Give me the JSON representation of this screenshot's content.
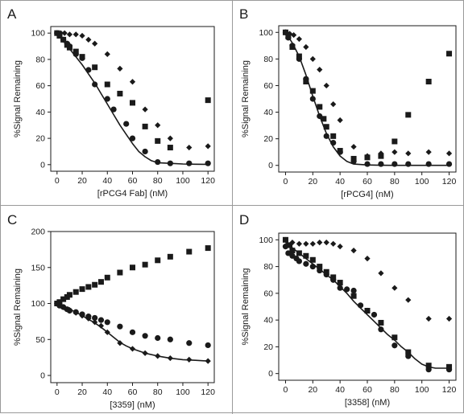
{
  "chart_data": [
    {
      "panel_label": "A",
      "type": "scatter",
      "xlabel": "[rPCG4 Fab] (nM)",
      "ylabel": "%Signal Remaining",
      "xlim": [
        -5,
        125
      ],
      "ylim": [
        -5,
        105
      ],
      "xticks": [
        0,
        20,
        40,
        60,
        80,
        100,
        120
      ],
      "yticks": [
        0,
        20,
        40,
        60,
        80,
        100
      ],
      "fit_line": {
        "x": [
          0,
          5,
          10,
          15,
          20,
          25,
          30,
          35,
          40,
          45,
          50,
          55,
          60,
          65,
          70,
          75,
          80,
          90,
          100,
          110,
          120
        ],
        "y": [
          100,
          94,
          88,
          82,
          76,
          69,
          62,
          54,
          46,
          38,
          30,
          23,
          16,
          10,
          6,
          3,
          1.5,
          1,
          0.5,
          0.3,
          0.2
        ]
      },
      "series": [
        {
          "marker": "diamond",
          "x": [
            0,
            3,
            6,
            10,
            15,
            20,
            25,
            30,
            40,
            50,
            60,
            70,
            80,
            90,
            105,
            120
          ],
          "y": [
            100,
            100,
            100,
            99,
            99,
            98,
            95,
            92,
            84,
            73,
            63,
            42,
            30,
            20,
            13,
            14
          ]
        },
        {
          "marker": "square",
          "x": [
            0,
            2,
            5,
            8,
            10,
            15,
            20,
            30,
            40,
            50,
            60,
            70,
            80,
            90,
            120
          ],
          "y": [
            100,
            98,
            95,
            91,
            89,
            86,
            82,
            74,
            61,
            54,
            47,
            29,
            18,
            13,
            49
          ]
        },
        {
          "marker": "circle",
          "x": [
            0,
            2,
            5,
            8,
            10,
            15,
            20,
            25,
            30,
            40,
            45,
            55,
            60,
            70,
            80,
            90,
            105,
            120
          ],
          "y": [
            100,
            98,
            95,
            92,
            90,
            84,
            81,
            72,
            61,
            50,
            42,
            31,
            20,
            10,
            2,
            1,
            1,
            1
          ]
        }
      ]
    },
    {
      "panel_label": "B",
      "type": "scatter",
      "xlabel": "[rPCG4] (nM)",
      "ylabel": "%Signal Remaining",
      "xlim": [
        -5,
        125
      ],
      "ylim": [
        -5,
        105
      ],
      "xticks": [
        0,
        20,
        40,
        60,
        80,
        100,
        120
      ],
      "yticks": [
        0,
        20,
        40,
        60,
        80,
        100
      ],
      "fit_line": {
        "x": [
          0,
          5,
          10,
          15,
          20,
          25,
          30,
          35,
          40,
          45,
          50,
          60,
          70,
          80,
          90,
          100,
          110,
          120
        ],
        "y": [
          100,
          92,
          82,
          68,
          52,
          37,
          24,
          14,
          7,
          3,
          1,
          0.3,
          0.1,
          0,
          0,
          0,
          0,
          0
        ]
      },
      "series": [
        {
          "marker": "diamond",
          "x": [
            0,
            3,
            6,
            10,
            15,
            20,
            25,
            30,
            35,
            40,
            50,
            60,
            70,
            80,
            90,
            105,
            120
          ],
          "y": [
            100,
            99,
            98,
            95,
            89,
            80,
            72,
            60,
            46,
            34,
            14,
            7,
            9,
            10,
            9,
            10,
            9
          ]
        },
        {
          "marker": "square",
          "x": [
            0,
            2,
            5,
            10,
            15,
            20,
            25,
            28,
            30,
            35,
            40,
            50,
            60,
            70,
            80,
            90,
            105,
            120
          ],
          "y": [
            100,
            97,
            89,
            82,
            63,
            56,
            44,
            35,
            29,
            22,
            11,
            5,
            6,
            7,
            18,
            38,
            63,
            84
          ]
        },
        {
          "marker": "circle",
          "x": [
            0,
            2,
            5,
            10,
            15,
            20,
            25,
            30,
            35,
            40,
            50,
            60,
            70,
            80,
            90,
            105,
            120
          ],
          "y": [
            100,
            96,
            90,
            80,
            65,
            50,
            37,
            22,
            17,
            10,
            3,
            1,
            1,
            1,
            1,
            1,
            1
          ]
        }
      ]
    },
    {
      "panel_label": "C",
      "type": "scatter",
      "xlabel": "[3359] (nM)",
      "ylabel": "%Signal Remaining",
      "xlim": [
        -5,
        125
      ],
      "ylim": [
        -10,
        200
      ],
      "xticks": [
        0,
        20,
        40,
        60,
        80,
        100,
        120
      ],
      "yticks": [
        0,
        50,
        100,
        150,
        200
      ],
      "fit_line": {
        "x": [
          0,
          5,
          10,
          15,
          20,
          25,
          30,
          35,
          40,
          45,
          50,
          55,
          60,
          70,
          80,
          90,
          100,
          110,
          120
        ],
        "y": [
          100,
          96,
          92,
          88,
          83,
          78,
          73,
          67,
          60,
          53,
          46,
          41,
          37,
          31,
          27,
          24,
          22,
          21,
          20
        ]
      },
      "series": [
        {
          "marker": "square",
          "x": [
            0,
            2,
            5,
            8,
            10,
            15,
            20,
            25,
            30,
            35,
            40,
            50,
            60,
            70,
            80,
            90,
            105,
            120
          ],
          "y": [
            100,
            102,
            106,
            109,
            112,
            116,
            120,
            123,
            126,
            130,
            136,
            143,
            150,
            154,
            160,
            165,
            172,
            177
          ]
        },
        {
          "marker": "circle",
          "x": [
            0,
            2,
            5,
            8,
            10,
            15,
            20,
            25,
            30,
            35,
            40,
            50,
            60,
            70,
            80,
            90,
            105,
            120
          ],
          "y": [
            100,
            97,
            95,
            92,
            90,
            88,
            85,
            82,
            80,
            77,
            74,
            68,
            60,
            55,
            52,
            50,
            45,
            42
          ]
        },
        {
          "marker": "diamond",
          "x": [
            0,
            3,
            6,
            10,
            15,
            20,
            25,
            30,
            35,
            40,
            50,
            60,
            70,
            80,
            90,
            105,
            120
          ],
          "y": [
            100,
            97,
            94,
            91,
            87,
            83,
            79,
            74,
            69,
            60,
            45,
            37,
            31,
            27,
            24,
            22,
            20
          ]
        }
      ]
    },
    {
      "panel_label": "D",
      "type": "scatter",
      "xlabel": "[3358] (nM)",
      "ylabel": "%Signal Remaining",
      "xlim": [
        -5,
        125
      ],
      "ylim": [
        -5,
        105
      ],
      "xticks": [
        0,
        20,
        40,
        60,
        80,
        100,
        120
      ],
      "yticks": [
        0,
        20,
        40,
        60,
        80,
        100
      ],
      "fit_line": {
        "x": [
          0,
          5,
          10,
          15,
          20,
          25,
          30,
          35,
          40,
          45,
          50,
          55,
          60,
          65,
          70,
          75,
          80,
          85,
          90,
          95,
          100,
          105,
          110,
          115,
          120
        ],
        "y": [
          98,
          94,
          90,
          86,
          82,
          78,
          74,
          70,
          65,
          60,
          54,
          49,
          44,
          39,
          34,
          29,
          25,
          20,
          16,
          11,
          7,
          5,
          4,
          4,
          4
        ]
      },
      "series": [
        {
          "marker": "diamond",
          "x": [
            0,
            5,
            10,
            15,
            20,
            25,
            30,
            35,
            40,
            50,
            60,
            70,
            80,
            90,
            105,
            120
          ],
          "y": [
            100,
            98,
            97,
            97,
            97,
            98,
            98,
            97,
            95,
            92,
            86,
            75,
            64,
            55,
            41,
            41
          ]
        },
        {
          "marker": "square",
          "x": [
            0,
            3,
            5,
            10,
            15,
            20,
            25,
            30,
            35,
            40,
            50,
            60,
            70,
            80,
            90,
            105,
            120
          ],
          "y": [
            100,
            96,
            92,
            90,
            88,
            85,
            80,
            76,
            72,
            68,
            58,
            47,
            38,
            27,
            16,
            6,
            5
          ]
        },
        {
          "marker": "circle",
          "x": [
            0,
            2,
            5,
            8,
            10,
            15,
            20,
            25,
            30,
            35,
            40,
            45,
            50,
            55,
            60,
            65,
            70,
            80,
            90,
            105,
            120
          ],
          "y": [
            95,
            90,
            88,
            86,
            84,
            82,
            80,
            77,
            74,
            70,
            64,
            63,
            62,
            51,
            47,
            44,
            33,
            21,
            13,
            3,
            3
          ]
        }
      ]
    }
  ]
}
